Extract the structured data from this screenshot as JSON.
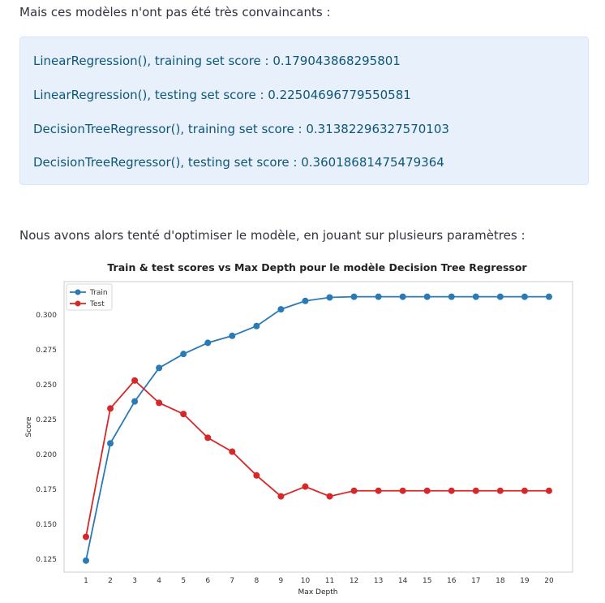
{
  "intro_text": "Mais ces modèles n'ont pas été très convaincants :",
  "scores": [
    "LinearRegression(), training set score : 0.179043868295801",
    "LinearRegression(), testing set score : 0.22504696779550581",
    "DecisionTreeRegressor(), training set score : 0.31382296327570103",
    "DecisionTreeRegressor(), testing set score : 0.36018681475479364"
  ],
  "optimise_text": "Nous avons alors tenté d'optimiser le modèle, en jouant sur plusieurs paramètres :",
  "colors": {
    "train": "#2a7ab5",
    "test": "#d62828",
    "info_bg": "#e8f1fb",
    "info_text": "#0e5679"
  },
  "chart_data": {
    "type": "line",
    "title": "Train & test scores vs Max Depth pour le modèle Decision Tree Regressor",
    "xlabel": "Max Depth",
    "ylabel": "Score",
    "x": [
      1,
      2,
      3,
      4,
      5,
      6,
      7,
      8,
      9,
      10,
      11,
      12,
      13,
      14,
      15,
      16,
      17,
      18,
      19,
      20
    ],
    "ylim": [
      0.115,
      0.32
    ],
    "yticks": [
      "0.125",
      "0.150",
      "0.175",
      "0.200",
      "0.225",
      "0.250",
      "0.275",
      "0.300"
    ],
    "ytick_values": [
      0.125,
      0.15,
      0.175,
      0.2,
      0.225,
      0.25,
      0.275,
      0.3
    ],
    "grid": false,
    "legend": "top-left",
    "series": [
      {
        "name": "Train",
        "color": "#2a7ab5",
        "values": [
          0.124,
          0.208,
          0.238,
          0.262,
          0.272,
          0.28,
          0.285,
          0.292,
          0.304,
          0.31,
          0.3125,
          0.313,
          0.313,
          0.313,
          0.313,
          0.313,
          0.313,
          0.313,
          0.313,
          0.313
        ]
      },
      {
        "name": "Test",
        "color": "#d62828",
        "values": [
          0.141,
          0.233,
          0.253,
          0.237,
          0.229,
          0.212,
          0.202,
          0.185,
          0.17,
          0.177,
          0.17,
          0.174,
          0.174,
          0.174,
          0.174,
          0.174,
          0.174,
          0.174,
          0.174,
          0.174
        ]
      }
    ]
  }
}
